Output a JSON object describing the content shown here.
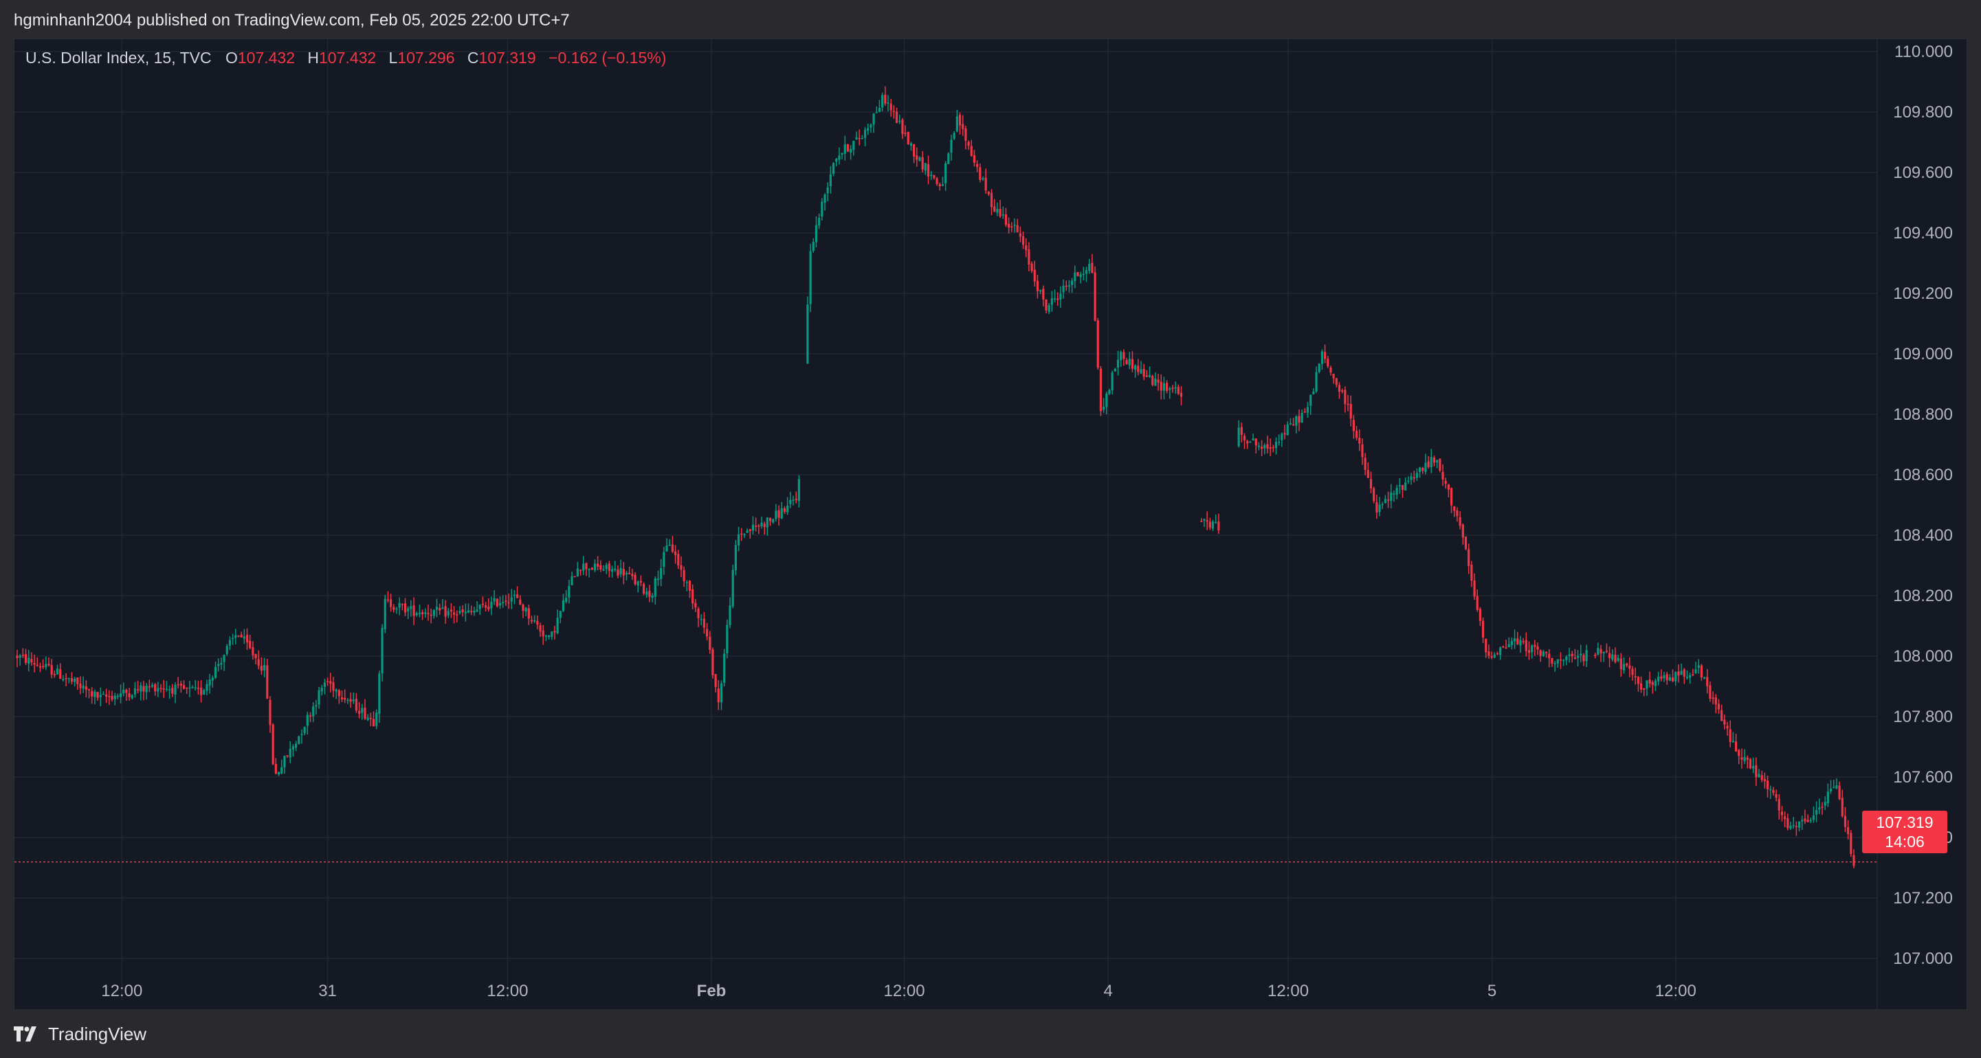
{
  "header": {
    "published_text": "hgminhanh2004 published on TradingView.com, Feb 05, 2025 22:00 UTC+7"
  },
  "legend": {
    "symbol": "U.S. Dollar Index, 15, TVC",
    "o_label": "O",
    "o_value": "107.432",
    "h_label": "H",
    "h_value": "107.432",
    "l_label": "L",
    "l_value": "107.296",
    "c_label": "C",
    "c_value": "107.319",
    "change": "−0.162 (−0.15%)"
  },
  "price_tag": {
    "price": "107.319",
    "countdown": "14:06"
  },
  "footer": {
    "brand": "TradingView"
  },
  "colors": {
    "up": "#089981",
    "down": "#f23645",
    "background": "#151924",
    "grid": "#232733"
  },
  "chart_data": {
    "type": "line",
    "series_name": "U.S. Dollar Index",
    "ylim": [
      107.0,
      110.0
    ],
    "y_ticks": [
      "107.000",
      "107.200",
      "107.400",
      "107.600",
      "107.800",
      "108.000",
      "108.200",
      "108.400",
      "108.600",
      "108.800",
      "109.000",
      "109.200",
      "109.400",
      "109.600",
      "109.800",
      "110.000"
    ],
    "x_ticks": [
      {
        "label": "12:00",
        "pos": 0.057,
        "bold": false
      },
      {
        "label": "31",
        "pos": 0.169,
        "bold": false
      },
      {
        "label": "12:00",
        "pos": 0.267,
        "bold": false
      },
      {
        "label": "Feb",
        "pos": 0.378,
        "bold": true
      },
      {
        "label": "12:00",
        "pos": 0.483,
        "bold": false
      },
      {
        "label": "4",
        "pos": 0.594,
        "bold": false
      },
      {
        "label": "12:00",
        "pos": 0.692,
        "bold": false
      },
      {
        "label": "5",
        "pos": 0.803,
        "bold": false
      },
      {
        "label": "12:00",
        "pos": 0.903,
        "bold": false
      }
    ],
    "last_price": 107.319,
    "path": [
      [
        0.0,
        108.0
      ],
      [
        0.02,
        107.95
      ],
      [
        0.045,
        107.86
      ],
      [
        0.075,
        107.9
      ],
      [
        0.1,
        107.88
      ],
      [
        0.12,
        108.08
      ],
      [
        0.135,
        107.95
      ],
      [
        0.14,
        107.6
      ],
      [
        0.152,
        107.72
      ],
      [
        0.168,
        107.92
      ],
      [
        0.195,
        107.78
      ],
      [
        0.2,
        108.18
      ],
      [
        0.215,
        108.15
      ],
      [
        0.245,
        108.14
      ],
      [
        0.27,
        108.2
      ],
      [
        0.29,
        108.05
      ],
      [
        0.305,
        108.3
      ],
      [
        0.33,
        108.28
      ],
      [
        0.345,
        108.2
      ],
      [
        0.355,
        108.38
      ],
      [
        0.375,
        108.08
      ],
      [
        0.382,
        107.84
      ],
      [
        0.392,
        108.4
      ],
      [
        0.41,
        108.45
      ],
      [
        0.425,
        108.52
      ],
      [
        0.432,
        109.35
      ],
      [
        0.445,
        109.65
      ],
      [
        0.46,
        109.72
      ],
      [
        0.472,
        109.85
      ],
      [
        0.49,
        109.65
      ],
      [
        0.503,
        109.55
      ],
      [
        0.512,
        109.78
      ],
      [
        0.53,
        109.5
      ],
      [
        0.545,
        109.4
      ],
      [
        0.56,
        109.15
      ],
      [
        0.575,
        109.25
      ],
      [
        0.585,
        109.3
      ],
      [
        0.59,
        108.8
      ],
      [
        0.6,
        109.0
      ],
      [
        0.62,
        108.9
      ],
      [
        0.633,
        108.88
      ],
      [
        0.642,
        108.45
      ],
      [
        0.655,
        108.43
      ],
      [
        0.665,
        108.74
      ],
      [
        0.68,
        108.68
      ],
      [
        0.69,
        108.74
      ],
      [
        0.703,
        108.82
      ],
      [
        0.71,
        109.0
      ],
      [
        0.725,
        108.82
      ],
      [
        0.74,
        108.48
      ],
      [
        0.76,
        108.6
      ],
      [
        0.772,
        108.65
      ],
      [
        0.785,
        108.45
      ],
      [
        0.8,
        108.0
      ],
      [
        0.815,
        108.05
      ],
      [
        0.84,
        107.98
      ],
      [
        0.865,
        108.02
      ],
      [
        0.885,
        107.9
      ],
      [
        0.915,
        107.96
      ],
      [
        0.935,
        107.7
      ],
      [
        0.955,
        107.55
      ],
      [
        0.965,
        107.42
      ],
      [
        0.98,
        107.48
      ],
      [
        0.99,
        107.58
      ],
      [
        1.0,
        107.32
      ]
    ]
  }
}
